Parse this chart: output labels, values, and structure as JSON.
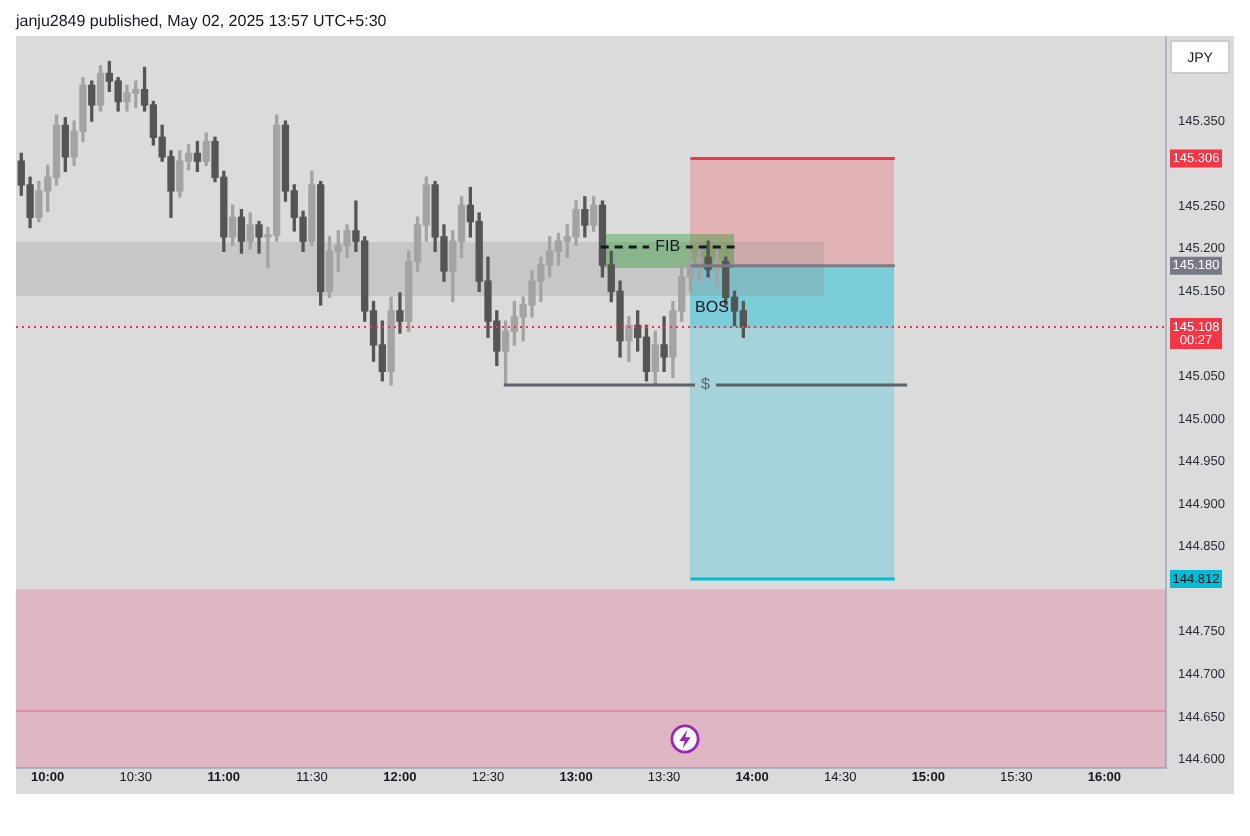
{
  "chart_data": {
    "type": "candlestick",
    "title": "janju2849 published, May 02, 2025 13:57 UTC+5:30",
    "ylabel": "JPY",
    "x": [
      9.85,
      9.9,
      9.95,
      10,
      10.05,
      10.1,
      10.15,
      10.2,
      10.25,
      10.3,
      10.35,
      10.4,
      10.45,
      10.5,
      10.55,
      10.6,
      10.65,
      10.7,
      10.75,
      10.8,
      10.85,
      10.9,
      10.95,
      11,
      11.05,
      11.1,
      11.15,
      11.2,
      11.25,
      11.3,
      11.35,
      11.4,
      11.45,
      11.5,
      11.55,
      11.6,
      11.65,
      11.7,
      11.75,
      11.8,
      11.85,
      11.9,
      11.95,
      12,
      12.05,
      12.1,
      12.15,
      12.2,
      12.25,
      12.3,
      12.35,
      12.4,
      12.45,
      12.5,
      12.55,
      12.6,
      12.65,
      12.7,
      12.75,
      12.8,
      12.85,
      12.9,
      12.95,
      13,
      13.05,
      13.1,
      13.15,
      13.2,
      13.25,
      13.3,
      13.35,
      13.4,
      13.45,
      13.5,
      13.55,
      13.6,
      13.65,
      13.7,
      13.75,
      13.8,
      13.85,
      13.9,
      13.95
    ],
    "ohlc": [
      [
        145.303,
        145.312,
        145.263,
        145.275
      ],
      [
        145.275,
        145.284,
        145.225,
        145.237
      ],
      [
        145.237,
        145.279,
        145.232,
        145.268
      ],
      [
        145.268,
        145.298,
        145.244,
        145.284
      ],
      [
        145.284,
        145.357,
        145.275,
        145.345
      ],
      [
        145.345,
        145.354,
        145.291,
        145.308
      ],
      [
        145.308,
        145.35,
        145.298,
        145.338
      ],
      [
        145.338,
        145.401,
        145.326,
        145.392
      ],
      [
        145.392,
        145.397,
        145.35,
        145.369
      ],
      [
        145.369,
        145.415,
        145.362,
        145.406
      ],
      [
        145.406,
        145.42,
        145.385,
        145.397
      ],
      [
        145.397,
        145.401,
        145.362,
        145.373
      ],
      [
        145.373,
        145.392,
        145.362,
        145.383
      ],
      [
        145.383,
        145.397,
        145.366,
        145.387
      ],
      [
        145.387,
        145.413,
        145.362,
        145.369
      ],
      [
        145.369,
        145.373,
        145.322,
        145.331
      ],
      [
        145.331,
        145.345,
        145.303,
        145.308
      ],
      [
        145.308,
        145.315,
        145.237,
        145.268
      ],
      [
        145.268,
        145.315,
        145.261,
        145.303
      ],
      [
        145.303,
        145.322,
        145.293,
        145.312
      ],
      [
        145.312,
        145.326,
        145.291,
        145.303
      ],
      [
        145.303,
        145.336,
        145.298,
        145.326
      ],
      [
        145.326,
        145.331,
        145.279,
        145.284
      ],
      [
        145.284,
        145.291,
        145.197,
        145.214
      ],
      [
        145.214,
        145.251,
        145.204,
        145.237
      ],
      [
        145.237,
        145.246,
        145.195,
        145.209
      ],
      [
        145.209,
        145.242,
        145.2,
        145.228
      ],
      [
        145.228,
        145.232,
        145.195,
        145.214
      ],
      [
        145.214,
        145.225,
        145.178,
        145.216
      ],
      [
        145.216,
        145.357,
        145.209,
        145.345
      ],
      [
        145.345,
        145.35,
        145.256,
        145.268
      ],
      [
        145.268,
        145.275,
        145.221,
        145.237
      ],
      [
        145.237,
        145.244,
        145.197,
        145.209
      ],
      [
        145.209,
        145.291,
        145.204,
        145.275
      ],
      [
        145.275,
        145.279,
        145.134,
        145.15
      ],
      [
        145.15,
        145.214,
        145.143,
        145.197
      ],
      [
        145.197,
        145.221,
        145.174,
        145.204
      ],
      [
        145.204,
        145.228,
        145.19,
        145.221
      ],
      [
        145.221,
        145.256,
        145.197,
        145.209
      ],
      [
        145.209,
        145.214,
        145.115,
        145.127
      ],
      [
        145.127,
        145.138,
        145.068,
        145.087
      ],
      [
        145.087,
        145.115,
        145.045,
        145.056
      ],
      [
        145.056,
        145.143,
        145.04,
        145.127
      ],
      [
        145.127,
        145.148,
        145.101,
        145.115
      ],
      [
        145.115,
        145.197,
        145.103,
        145.185
      ],
      [
        145.185,
        145.237,
        145.174,
        145.228
      ],
      [
        145.228,
        145.284,
        145.209,
        145.275
      ],
      [
        145.275,
        145.279,
        145.197,
        145.214
      ],
      [
        145.214,
        145.228,
        145.162,
        145.174
      ],
      [
        145.174,
        145.221,
        145.138,
        145.209
      ],
      [
        145.209,
        145.261,
        145.19,
        145.251
      ],
      [
        145.251,
        145.272,
        145.214,
        145.232
      ],
      [
        145.232,
        145.242,
        145.15,
        145.162
      ],
      [
        145.162,
        145.19,
        145.096,
        145.115
      ],
      [
        145.115,
        145.127,
        145.063,
        145.08
      ],
      [
        145.08,
        145.115,
        145.04,
        145.103
      ],
      [
        145.103,
        145.138,
        145.087,
        145.12
      ],
      [
        145.12,
        145.143,
        145.092,
        145.134
      ],
      [
        145.134,
        145.174,
        145.12,
        145.162
      ],
      [
        145.162,
        145.19,
        145.138,
        145.181
      ],
      [
        145.181,
        145.214,
        145.167,
        145.197
      ],
      [
        145.197,
        145.218,
        145.181,
        145.209
      ],
      [
        145.209,
        145.228,
        145.19,
        145.214
      ],
      [
        145.214,
        145.256,
        145.204,
        145.246
      ],
      [
        145.246,
        145.261,
        145.214,
        145.228
      ],
      [
        145.228,
        145.261,
        145.221,
        145.251
      ],
      [
        145.251,
        145.256,
        145.167,
        145.181
      ],
      [
        145.181,
        145.197,
        145.138,
        145.15
      ],
      [
        145.15,
        145.162,
        145.073,
        145.092
      ],
      [
        145.092,
        145.12,
        145.068,
        145.11
      ],
      [
        145.11,
        145.127,
        145.08,
        145.096
      ],
      [
        145.096,
        145.11,
        145.045,
        145.056
      ],
      [
        145.056,
        145.103,
        145.04,
        145.087
      ],
      [
        145.087,
        145.12,
        145.056,
        145.073
      ],
      [
        145.073,
        145.138,
        145.049,
        145.127
      ],
      [
        145.127,
        145.181,
        145.115,
        145.167
      ],
      [
        145.167,
        145.197,
        145.15,
        145.185
      ],
      [
        145.185,
        145.204,
        145.162,
        145.19
      ],
      [
        145.19,
        145.209,
        145.167,
        145.176
      ],
      [
        145.176,
        145.2,
        145.157,
        145.185
      ],
      [
        145.185,
        145.19,
        145.134,
        145.143
      ],
      [
        145.143,
        145.15,
        145.11,
        145.127
      ],
      [
        145.127,
        145.138,
        145.096,
        145.108
      ]
    ],
    "colors": [
      "#555555",
      "#555555",
      "#a3a3a3",
      "#a3a3a3",
      "#a3a3a3",
      "#555555",
      "#a3a3a3",
      "#a3a3a3",
      "#555555",
      "#a3a3a3",
      "#555555",
      "#555555",
      "#a3a3a3",
      "#a3a3a3",
      "#555555",
      "#555555",
      "#555555",
      "#555555",
      "#a3a3a3",
      "#a3a3a3",
      "#555555",
      "#a3a3a3",
      "#555555",
      "#555555",
      "#a3a3a3",
      "#555555",
      "#a3a3a3",
      "#555555",
      "#a3a3a3",
      "#a3a3a3",
      "#555555",
      "#555555",
      "#555555",
      "#a3a3a3",
      "#555555",
      "#a3a3a3",
      "#a3a3a3",
      "#a3a3a3",
      "#555555",
      "#555555",
      "#555555",
      "#555555",
      "#a3a3a3",
      "#555555",
      "#a3a3a3",
      "#a3a3a3",
      "#a3a3a3",
      "#555555",
      "#555555",
      "#a3a3a3",
      "#a3a3a3",
      "#555555",
      "#555555",
      "#555555",
      "#555555",
      "#a3a3a3",
      "#a3a3a3",
      "#a3a3a3",
      "#a3a3a3",
      "#a3a3a3",
      "#a3a3a3",
      "#a3a3a3",
      "#a3a3a3",
      "#a3a3a3",
      "#555555",
      "#a3a3a3",
      "#555555",
      "#555555",
      "#555555",
      "#a3a3a3",
      "#555555",
      "#555555",
      "#a3a3a3",
      "#555555",
      "#a3a3a3",
      "#a3a3a3",
      "#a3a3a3",
      "#a3a3a3",
      "#555555",
      "#a3a3a3",
      "#555555",
      "#555555",
      "#555555"
    ],
    "series": [
      {
        "type": "line",
        "x": [
          13.65,
          14.81
        ],
        "values": [
          145.306,
          145.306
        ],
        "color": "#f23645"
      },
      {
        "type": "line",
        "x": [
          13.65,
          14.81
        ],
        "values": [
          145.18,
          145.18
        ],
        "color": "#787b86"
      },
      {
        "type": "line",
        "x": [
          13.65,
          14.81
        ],
        "values": [
          144.812,
          144.812
        ],
        "color": "#00bcd4"
      },
      {
        "type": "line",
        "name": "FIB",
        "x": [
          13.14,
          13.9
        ],
        "values": [
          145.202,
          145.202
        ],
        "color": "#131722",
        "line_style": "dashed"
      },
      {
        "type": "line",
        "name": "$",
        "x": [
          12.59,
          14.88
        ],
        "values": [
          145.04,
          145.04
        ],
        "color": "#5d606b"
      }
    ],
    "bands": [
      {
        "axis": "y",
        "from": 144.59,
        "to": 144.8,
        "color": "#ec4b80"
      }
    ],
    "ref_lines": [
      {
        "axis": "y",
        "value": 145.108,
        "label": "145.108\n00:27",
        "color": "#f23645",
        "line_style": "dotted"
      },
      {
        "axis": "y",
        "value": 144.657,
        "color": "#dd8fa8"
      }
    ],
    "annotations": [
      "BOS",
      {
        "text": "145.306",
        "y": 145.306
      },
      {
        "text": "145.180",
        "y": 145.18
      },
      {
        "text": "144.812",
        "y": 144.812
      }
    ],
    "xlim": [
      9.82,
      16.35
    ],
    "ylim": [
      144.59,
      145.45
    ],
    "xticks": [
      {
        "value": 10,
        "label": "10:00"
      },
      {
        "value": 10.5,
        "label": "10:30"
      },
      {
        "value": 11,
        "label": "11:00"
      },
      {
        "value": 11.5,
        "label": "11:30"
      },
      {
        "value": 12,
        "label": "12:00"
      },
      {
        "value": 12.5,
        "label": "12:30"
      },
      {
        "value": 13,
        "label": "13:00"
      },
      {
        "value": 13.5,
        "label": "13:30"
      },
      {
        "value": 14,
        "label": "14:00"
      },
      {
        "value": 14.5,
        "label": "14:30"
      },
      {
        "value": 15,
        "label": "15:00"
      },
      {
        "value": 15.5,
        "label": "15:30"
      },
      {
        "value": 16,
        "label": "16:00"
      }
    ],
    "yticks": [
      {
        "value": 145.35,
        "label": "145.350"
      },
      {
        "value": 145.25,
        "label": "145.250"
      },
      {
        "value": 145.2,
        "label": "145.200"
      },
      {
        "value": 145.15,
        "label": "145.150"
      },
      {
        "value": 145.05,
        "label": "145.050"
      },
      {
        "value": 145,
        "label": "145.000"
      },
      {
        "value": 144.95,
        "label": "144.950"
      },
      {
        "value": 144.9,
        "label": "144.900"
      },
      {
        "value": 144.85,
        "label": "144.850"
      },
      {
        "value": 144.75,
        "label": "144.750"
      },
      {
        "value": 144.7,
        "label": "144.700"
      },
      {
        "value": 144.65,
        "label": "144.650"
      },
      {
        "value": 144.6,
        "label": "144.600"
      }
    ]
  }
}
